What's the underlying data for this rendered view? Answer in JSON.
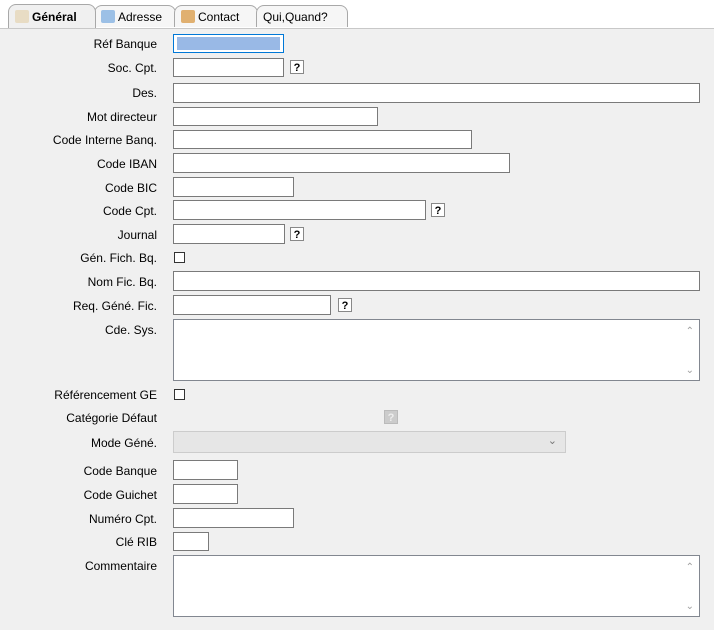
{
  "tabs": [
    {
      "label": "Général",
      "icon": "document-icon"
    },
    {
      "label": "Adresse",
      "icon": "envelope-icon"
    },
    {
      "label": "Contact",
      "icon": "people-icon"
    },
    {
      "label": "Qui,Quand?"
    }
  ],
  "fields": {
    "ref_banque": "Réf Banque",
    "soc_cpt": "Soc. Cpt.",
    "des": "Des.",
    "mot_directeur": "Mot directeur",
    "code_interne": "Code Interne Banq.",
    "code_iban": "Code IBAN",
    "code_bic": "Code BIC",
    "code_cpt": "Code Cpt.",
    "journal": "Journal",
    "gen_fich": "Gén. Fich. Bq.",
    "nom_fic": "Nom Fic. Bq.",
    "req_gene": "Req. Géné. Fic.",
    "cde_sys": "Cde. Sys.",
    "referencement": "Référencement GE",
    "categorie": "Catégorie Défaut",
    "mode_gene": "Mode Géné.",
    "code_banque": "Code Banque",
    "code_guichet": "Code Guichet",
    "numero_cpt": "Numéro Cpt.",
    "cle_rib": "Clé RIB",
    "commentaire": "Commentaire"
  },
  "help": "?"
}
